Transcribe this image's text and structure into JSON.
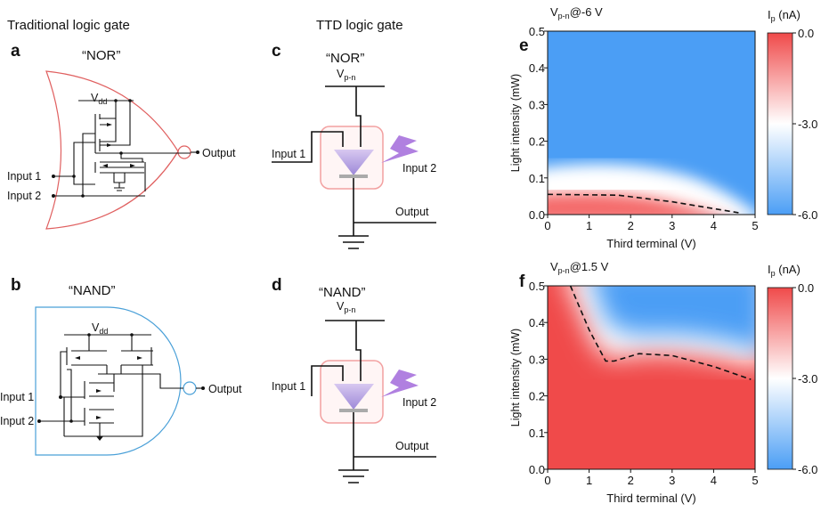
{
  "headers": {
    "traditional": "Traditional logic gate",
    "ttd": "TTD logic gate"
  },
  "panels": {
    "a": {
      "letter": "a",
      "title": "“NOR”",
      "vdd_main": "V",
      "vdd_sub": "dd",
      "input1": "Input 1",
      "input2": "Input 2",
      "output": "Output"
    },
    "b": {
      "letter": "b",
      "title": "“NAND”",
      "vdd_main": "V",
      "vdd_sub": "dd",
      "input1": "Input 1",
      "input2": "Input 2",
      "output": "Output"
    },
    "c": {
      "letter": "c",
      "title": "“NOR”",
      "v_main": "V",
      "v_sub": "p-n",
      "input1": "Input 1",
      "input2": "Input 2",
      "output": "Output"
    },
    "d": {
      "letter": "d",
      "title": "“NAND”",
      "v_main": "V",
      "v_sub": "p-n",
      "input1": "Input 1",
      "input2": "Input 2",
      "output": "Output"
    }
  },
  "colors": {
    "nor_outline": "#e06060",
    "nand_outline": "#4aa0d8",
    "heat_red": "#f04a4a",
    "heat_blue": "#4b9ef5",
    "device_box": "#f2a0a0",
    "lightning": "#b080e0"
  },
  "chart_data": [
    {
      "panel": "e",
      "letter": "e",
      "type": "heatmap",
      "title_main": "V",
      "title_sub": "p-n",
      "title_rest": "@-6 V",
      "xlabel": "Third terminal (V)",
      "ylabel": "Light intensity (mW)",
      "xlim": [
        0,
        5
      ],
      "ylim": [
        0,
        0.5
      ],
      "xticks": [
        "0",
        "1",
        "2",
        "3",
        "4",
        "5"
      ],
      "yticks": [
        "0.0",
        "0.1",
        "0.2",
        "0.3",
        "0.4",
        "0.5"
      ],
      "colorbar": {
        "label_main": "I",
        "label_sub": "p",
        "label_rest": " (nA)",
        "range": [
          -6.0,
          0.0
        ],
        "ticks": [
          "0.0",
          "-3.0",
          "-6.0"
        ]
      },
      "boundary": [
        [
          0,
          0.055
        ],
        [
          1.7,
          0.053
        ],
        [
          3,
          0.035
        ],
        [
          4.6,
          0.005
        ]
      ]
    },
    {
      "panel": "f",
      "letter": "f",
      "type": "heatmap",
      "title_main": "V",
      "title_sub": "p-n",
      "title_rest": "@1.5 V",
      "xlabel": "Third terminal (V)",
      "ylabel": "Light intensity (mW)",
      "xlim": [
        0,
        5
      ],
      "ylim": [
        0,
        0.5
      ],
      "xticks": [
        "0",
        "1",
        "2",
        "3",
        "4",
        "5"
      ],
      "yticks": [
        "0.0",
        "0.1",
        "0.2",
        "0.3",
        "0.4",
        "0.5"
      ],
      "colorbar": {
        "label_main": "I",
        "label_sub": "p",
        "label_rest": " (nA)",
        "range": [
          -6.0,
          0.0
        ],
        "ticks": [
          "0.0",
          "-3.0",
          "-6.0"
        ]
      },
      "boundary": [
        [
          0.55,
          0.5
        ],
        [
          1.0,
          0.38
        ],
        [
          1.4,
          0.295
        ],
        [
          1.6,
          0.295
        ],
        [
          2.2,
          0.315
        ],
        [
          3,
          0.31
        ],
        [
          4,
          0.28
        ],
        [
          4.9,
          0.245
        ]
      ]
    }
  ]
}
